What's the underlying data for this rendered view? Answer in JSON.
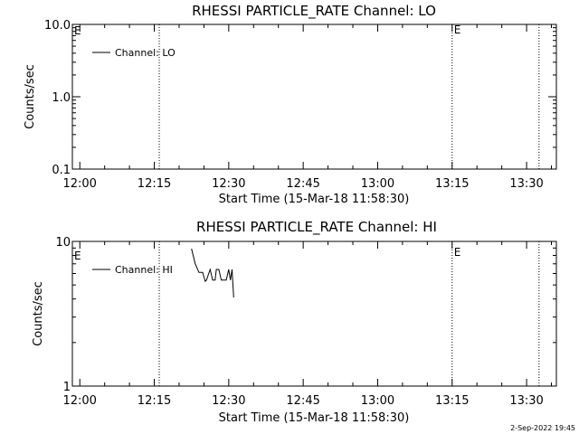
{
  "chart_data": [
    {
      "type": "line",
      "title": "RHESSI PARTICLE_RATE Channel: LO",
      "xlabel": "Start Time (15-Mar-18 11:58:30)",
      "ylabel": "Counts/sec",
      "yscale": "log",
      "ylim": [
        0.1,
        10.0
      ],
      "yticks": [
        {
          "value": 0.1,
          "label": "0.1"
        },
        {
          "value": 1.0,
          "label": "1.0"
        },
        {
          "value": 10.0,
          "label": "10.0"
        }
      ],
      "xlim": [
        "11:58:30",
        "13:36:00"
      ],
      "xticks": [
        "12:00",
        "12:15",
        "12:30",
        "12:45",
        "13:00",
        "13:15",
        "13:30"
      ],
      "series": [
        {
          "name": "Channel: LO",
          "x": [],
          "y": []
        }
      ],
      "legend": "upper-left",
      "markers": [
        {
          "time": "12:16:00",
          "label": ""
        },
        {
          "time": "13:15:00",
          "label": "E"
        },
        {
          "time": "13:32:30",
          "label": ""
        }
      ],
      "left_flag": "E"
    },
    {
      "type": "line",
      "title": "RHESSI PARTICLE_RATE Channel: HI",
      "xlabel": "Start Time (15-Mar-18 11:58:30)",
      "ylabel": "Counts/sec",
      "yscale": "log",
      "ylim": [
        1,
        10
      ],
      "yticks": [
        {
          "value": 1,
          "label": "1"
        },
        {
          "value": 10,
          "label": "10"
        }
      ],
      "xlim": [
        "11:58:30",
        "13:36:00"
      ],
      "xticks": [
        "12:00",
        "12:15",
        "12:30",
        "12:45",
        "13:00",
        "13:15",
        "13:30"
      ],
      "series": [
        {
          "name": "Channel: HI",
          "x": [
            "12:22:30",
            "12:23:15",
            "12:24:00",
            "12:24:45",
            "12:25:15",
            "12:25:30",
            "12:26:15",
            "12:26:45",
            "12:27:15",
            "12:27:30",
            "12:28:00",
            "12:28:30",
            "12:29:00",
            "12:29:30",
            "12:30:00",
            "12:30:20",
            "12:30:40",
            "12:31:00"
          ],
          "y": [
            8.9,
            7.0,
            6.1,
            6.1,
            5.3,
            5.4,
            6.4,
            5.4,
            5.4,
            6.4,
            6.4,
            5.4,
            5.4,
            5.4,
            6.4,
            5.4,
            6.4,
            4.1
          ]
        }
      ],
      "legend": "upper-left",
      "markers": [
        {
          "time": "12:16:00",
          "label": ""
        },
        {
          "time": "13:15:00",
          "label": "E"
        },
        {
          "time": "13:32:30",
          "label": ""
        }
      ],
      "left_flag": "E"
    }
  ],
  "footer": "2-Sep-2022 19:45"
}
